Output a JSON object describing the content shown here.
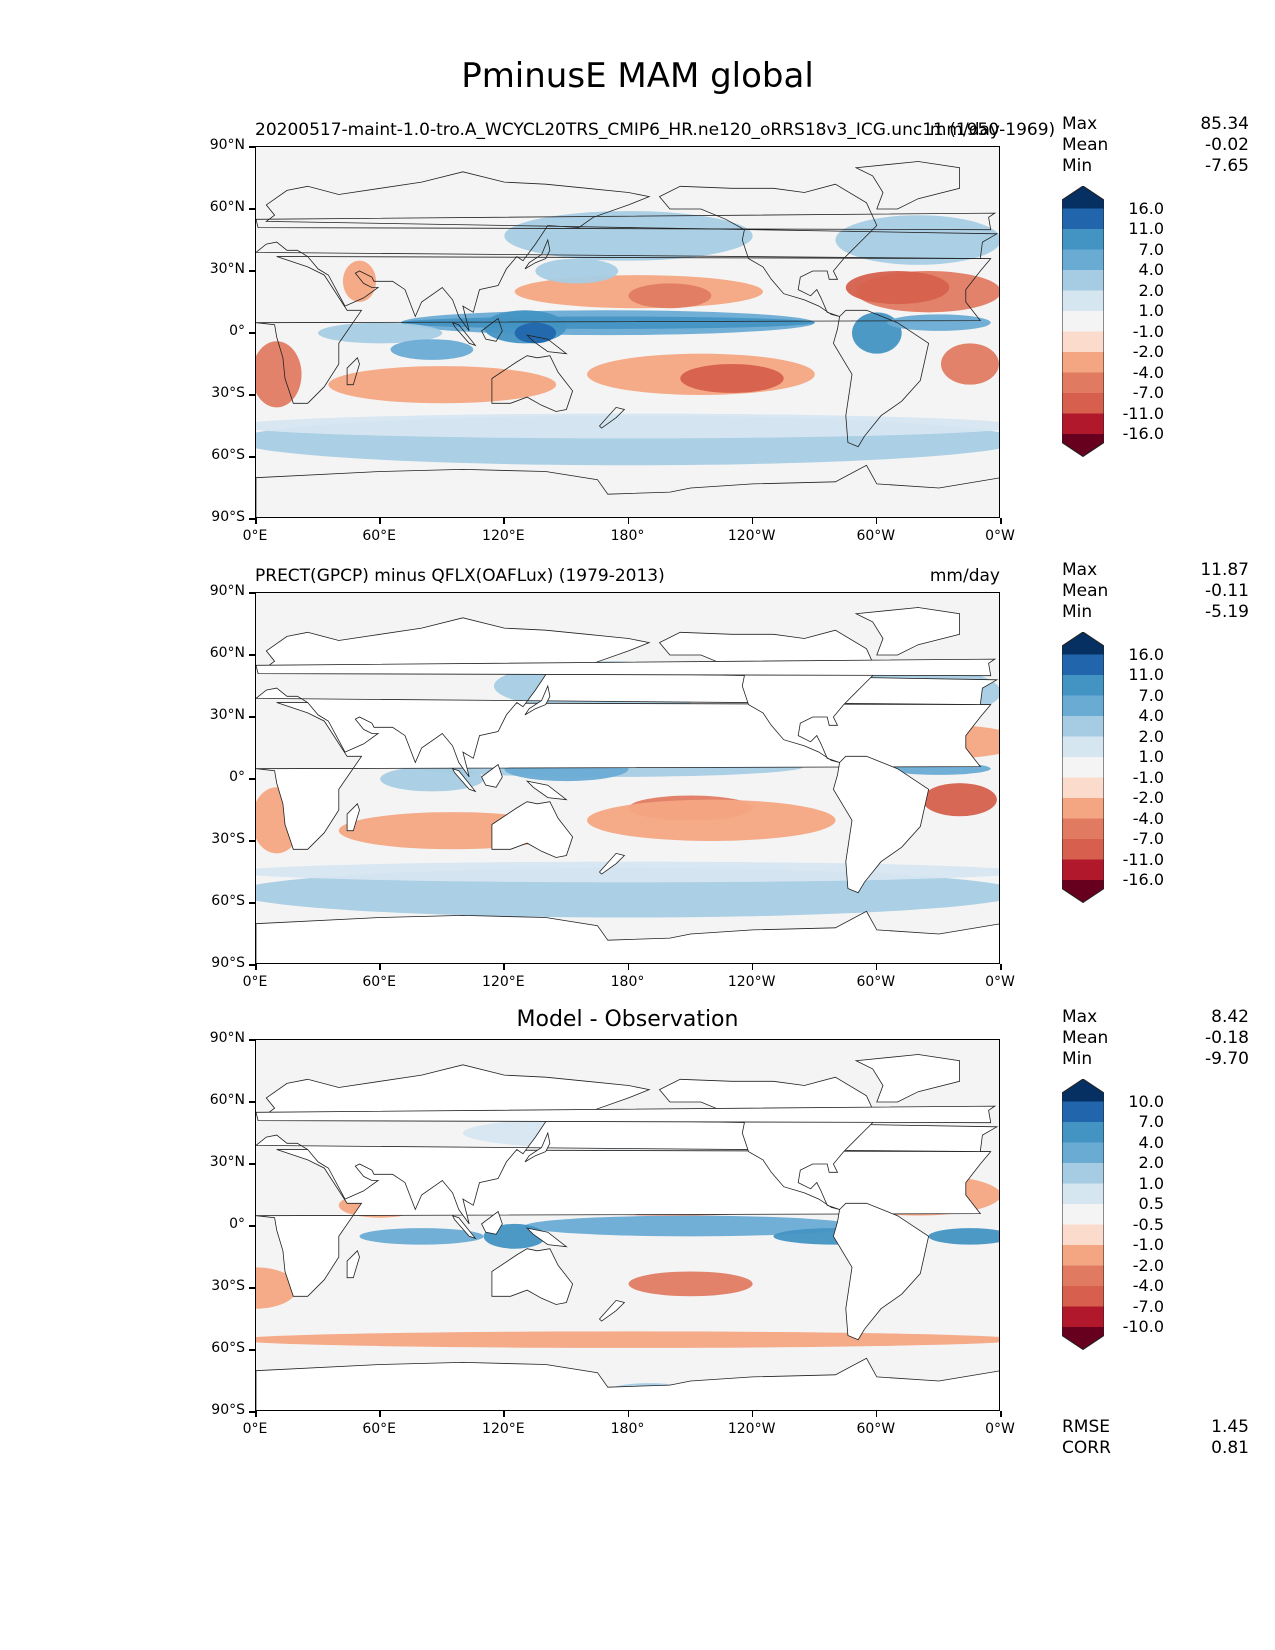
{
  "figure": {
    "title": "PminusE MAM global"
  },
  "panels": [
    {
      "title": "20200517-maint-1.0-tro.A_WCYCL20TRS_CMIP6_HR.ne120_oRRS18v3_ICG.unc11 (1950-1969)",
      "units": "mm/day",
      "stats": {
        "max_label": "Max",
        "max": "85.34",
        "mean_label": "Mean",
        "mean": "-0.02",
        "min_label": "Min",
        "min": "-7.65"
      },
      "colorbar": [
        "16.0",
        "11.0",
        "7.0",
        "4.0",
        "2.0",
        "1.0",
        "-1.0",
        "-2.0",
        "-4.0",
        "-7.0",
        "-11.0",
        "-16.0"
      ]
    },
    {
      "title": "PRECT(GPCP) minus QFLX(OAFLux) (1979-2013)",
      "units": "mm/day",
      "stats": {
        "max_label": "Max",
        "max": "11.87",
        "mean_label": "Mean",
        "mean": "-0.11",
        "min_label": "Min",
        "min": "-5.19"
      },
      "colorbar": [
        "16.0",
        "11.0",
        "7.0",
        "4.0",
        "2.0",
        "1.0",
        "-1.0",
        "-2.0",
        "-4.0",
        "-7.0",
        "-11.0",
        "-16.0"
      ]
    },
    {
      "title": "Model - Observation",
      "units": "",
      "stats": {
        "max_label": "Max",
        "max": "8.42",
        "mean_label": "Mean",
        "mean": "-0.18",
        "min_label": "Min",
        "min": "-9.70"
      },
      "colorbar": [
        "10.0",
        "7.0",
        "4.0",
        "2.0",
        "1.0",
        "0.5",
        "-0.5",
        "-1.0",
        "-2.0",
        "-4.0",
        "-7.0",
        "-10.0"
      ],
      "metrics": {
        "rmse_label": "RMSE",
        "rmse": "1.45",
        "corr_label": "CORR",
        "corr": "0.81"
      }
    }
  ],
  "axes": {
    "lat_labels": [
      "90°N",
      "60°N",
      "30°N",
      "0°",
      "30°S",
      "60°S",
      "90°S"
    ],
    "lon_labels": [
      "0°E",
      "60°E",
      "120°E",
      "180°",
      "120°W",
      "60°W",
      "0°W"
    ]
  },
  "colors": {
    "scale": [
      "#053061",
      "#2166ac",
      "#4393c3",
      "#6aabd4",
      "#a6cce3",
      "#d6e6f1",
      "#f4f4f4",
      "#fbdbcc",
      "#f4a582",
      "#e07b62",
      "#d6604d",
      "#b2182b",
      "#67001f"
    ],
    "land": "#ffffff",
    "ocean_background": "#f4f4f4"
  }
}
